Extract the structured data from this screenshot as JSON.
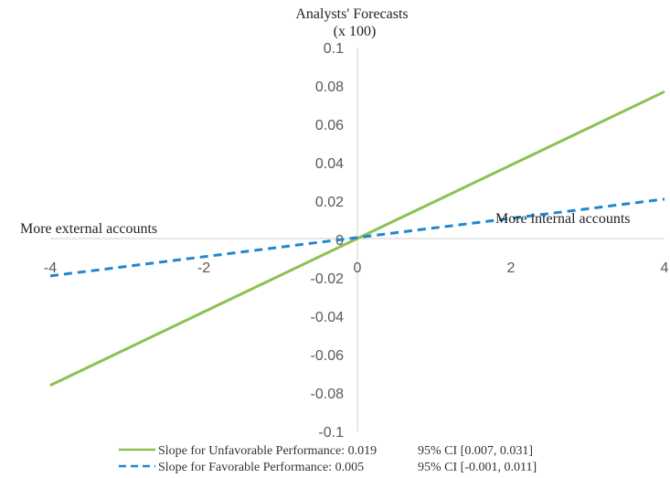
{
  "chart_data": {
    "type": "line",
    "title_lines": [
      "Analysts' Forecasts",
      "(x 100)"
    ],
    "x_ticks": [
      "-4",
      "-2",
      "0",
      "2",
      "4"
    ],
    "y_ticks": [
      "0.1",
      "0.08",
      "0.06",
      "0.04",
      "0.02",
      "0",
      "-0.02",
      "-0.04",
      "-0.06",
      "-0.08",
      "-0.1"
    ],
    "xlim": [
      -4,
      4
    ],
    "ylim": [
      -0.1,
      0.1
    ],
    "grid": false,
    "annotations": {
      "left": "More external accounts",
      "right": "More internal accounts"
    },
    "series": [
      {
        "name": "Slope for Unfavorable Performance: 0.019",
        "ci": "95% CI [0.007, 0.031]",
        "style": "solid",
        "color": "#8cc151",
        "x": [
          -4,
          4
        ],
        "y": [
          -0.076,
          0.077
        ]
      },
      {
        "name": "Slope for Favorable Performance: 0.005",
        "ci": "95% CI [-0.001, 0.011]",
        "style": "dashed",
        "color": "#1f87cf",
        "x": [
          -4,
          4
        ],
        "y": [
          -0.019,
          0.021
        ]
      }
    ]
  }
}
